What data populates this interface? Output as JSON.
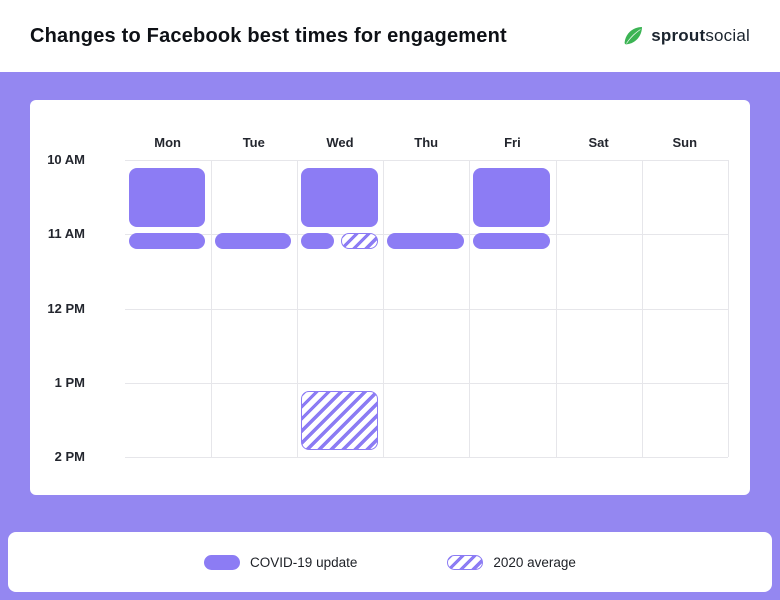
{
  "header": {
    "title": "Changes to Facebook best times for engagement",
    "logo": {
      "bold": "sprout",
      "regular": "social"
    }
  },
  "colors": {
    "background_purple": "#9487F1",
    "block_purple": "#8C7CF4",
    "grid_line": "#E6E6EA",
    "text_dark": "#23262e",
    "leaf_green": "#3CB454"
  },
  "chart_data": {
    "type": "heatmap",
    "title": "Changes to Facebook best times for engagement",
    "days": [
      "Mon",
      "Tue",
      "Wed",
      "Thu",
      "Fri",
      "Sat",
      "Sun"
    ],
    "time_labels": [
      "10 AM",
      "11 AM",
      "12 PM",
      "1 PM",
      "2 PM"
    ],
    "series": [
      {
        "name": "COVID-19 update",
        "style": "solid"
      },
      {
        "name": "2020 average",
        "style": "hatched"
      }
    ],
    "blocks": [
      {
        "day": "Mon",
        "from": "10 AM",
        "to": "11 AM",
        "series": "COVID-19 update",
        "kind": "block"
      },
      {
        "day": "Mon",
        "at": "11 AM",
        "series": "COVID-19 update",
        "kind": "pill"
      },
      {
        "day": "Tue",
        "at": "11 AM",
        "series": "COVID-19 update",
        "kind": "pill"
      },
      {
        "day": "Wed",
        "from": "10 AM",
        "to": "11 AM",
        "series": "COVID-19 update",
        "kind": "block"
      },
      {
        "day": "Wed",
        "at": "11 AM",
        "series": "COVID-19 update",
        "kind": "pill-half-left"
      },
      {
        "day": "Wed",
        "at": "11 AM",
        "series": "2020 average",
        "kind": "pill-half-right"
      },
      {
        "day": "Thu",
        "at": "11 AM",
        "series": "COVID-19 update",
        "kind": "pill"
      },
      {
        "day": "Fri",
        "from": "10 AM",
        "to": "11 AM",
        "series": "COVID-19 update",
        "kind": "block"
      },
      {
        "day": "Fri",
        "at": "11 AM",
        "series": "COVID-19 update",
        "kind": "pill"
      },
      {
        "day": "Wed",
        "from": "1 PM",
        "to": "2 PM",
        "series": "2020 average",
        "kind": "block"
      }
    ],
    "legend": [
      {
        "label": "COVID-19 update",
        "style": "solid"
      },
      {
        "label": "2020 average",
        "style": "hatched"
      }
    ]
  }
}
